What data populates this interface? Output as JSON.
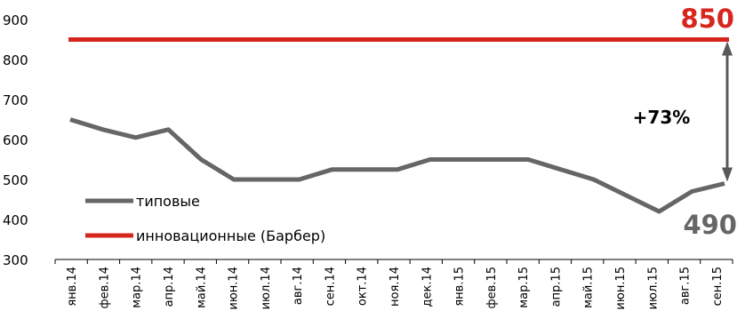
{
  "chart_data": {
    "type": "line",
    "categories": [
      "янв.14",
      "фев.14",
      "мар.14",
      "апр.14",
      "май.14",
      "июн.14",
      "июл.14",
      "авг.14",
      "сен.14",
      "окт.14",
      "ноя.14",
      "дек.14",
      "янв.15",
      "фев.15",
      "мар.15",
      "апр.15",
      "май.15",
      "июн.15",
      "июл.15",
      "авг.15",
      "сен.15"
    ],
    "series": [
      {
        "name": "типовые",
        "color": "#666666",
        "values": [
          650,
          625,
          605,
          625,
          550,
          500,
          500,
          500,
          525,
          525,
          525,
          550,
          550,
          550,
          550,
          525,
          500,
          460,
          420,
          470,
          490
        ]
      },
      {
        "name": "инновационные (Барбер)",
        "color": "#d7261e",
        "values": [
          850,
          850,
          850,
          850,
          850,
          850,
          850,
          850,
          850,
          850,
          850,
          850,
          850,
          850,
          850,
          850,
          850,
          850,
          850,
          850,
          850
        ]
      }
    ],
    "ylim": [
      300,
      900
    ],
    "yticks": [
      300,
      400,
      500,
      600,
      700,
      800,
      900
    ],
    "grid": false,
    "legend_position": "bottom-left",
    "annotations": {
      "top_value": "850",
      "bottom_value": "490",
      "difference": "+73%"
    }
  }
}
